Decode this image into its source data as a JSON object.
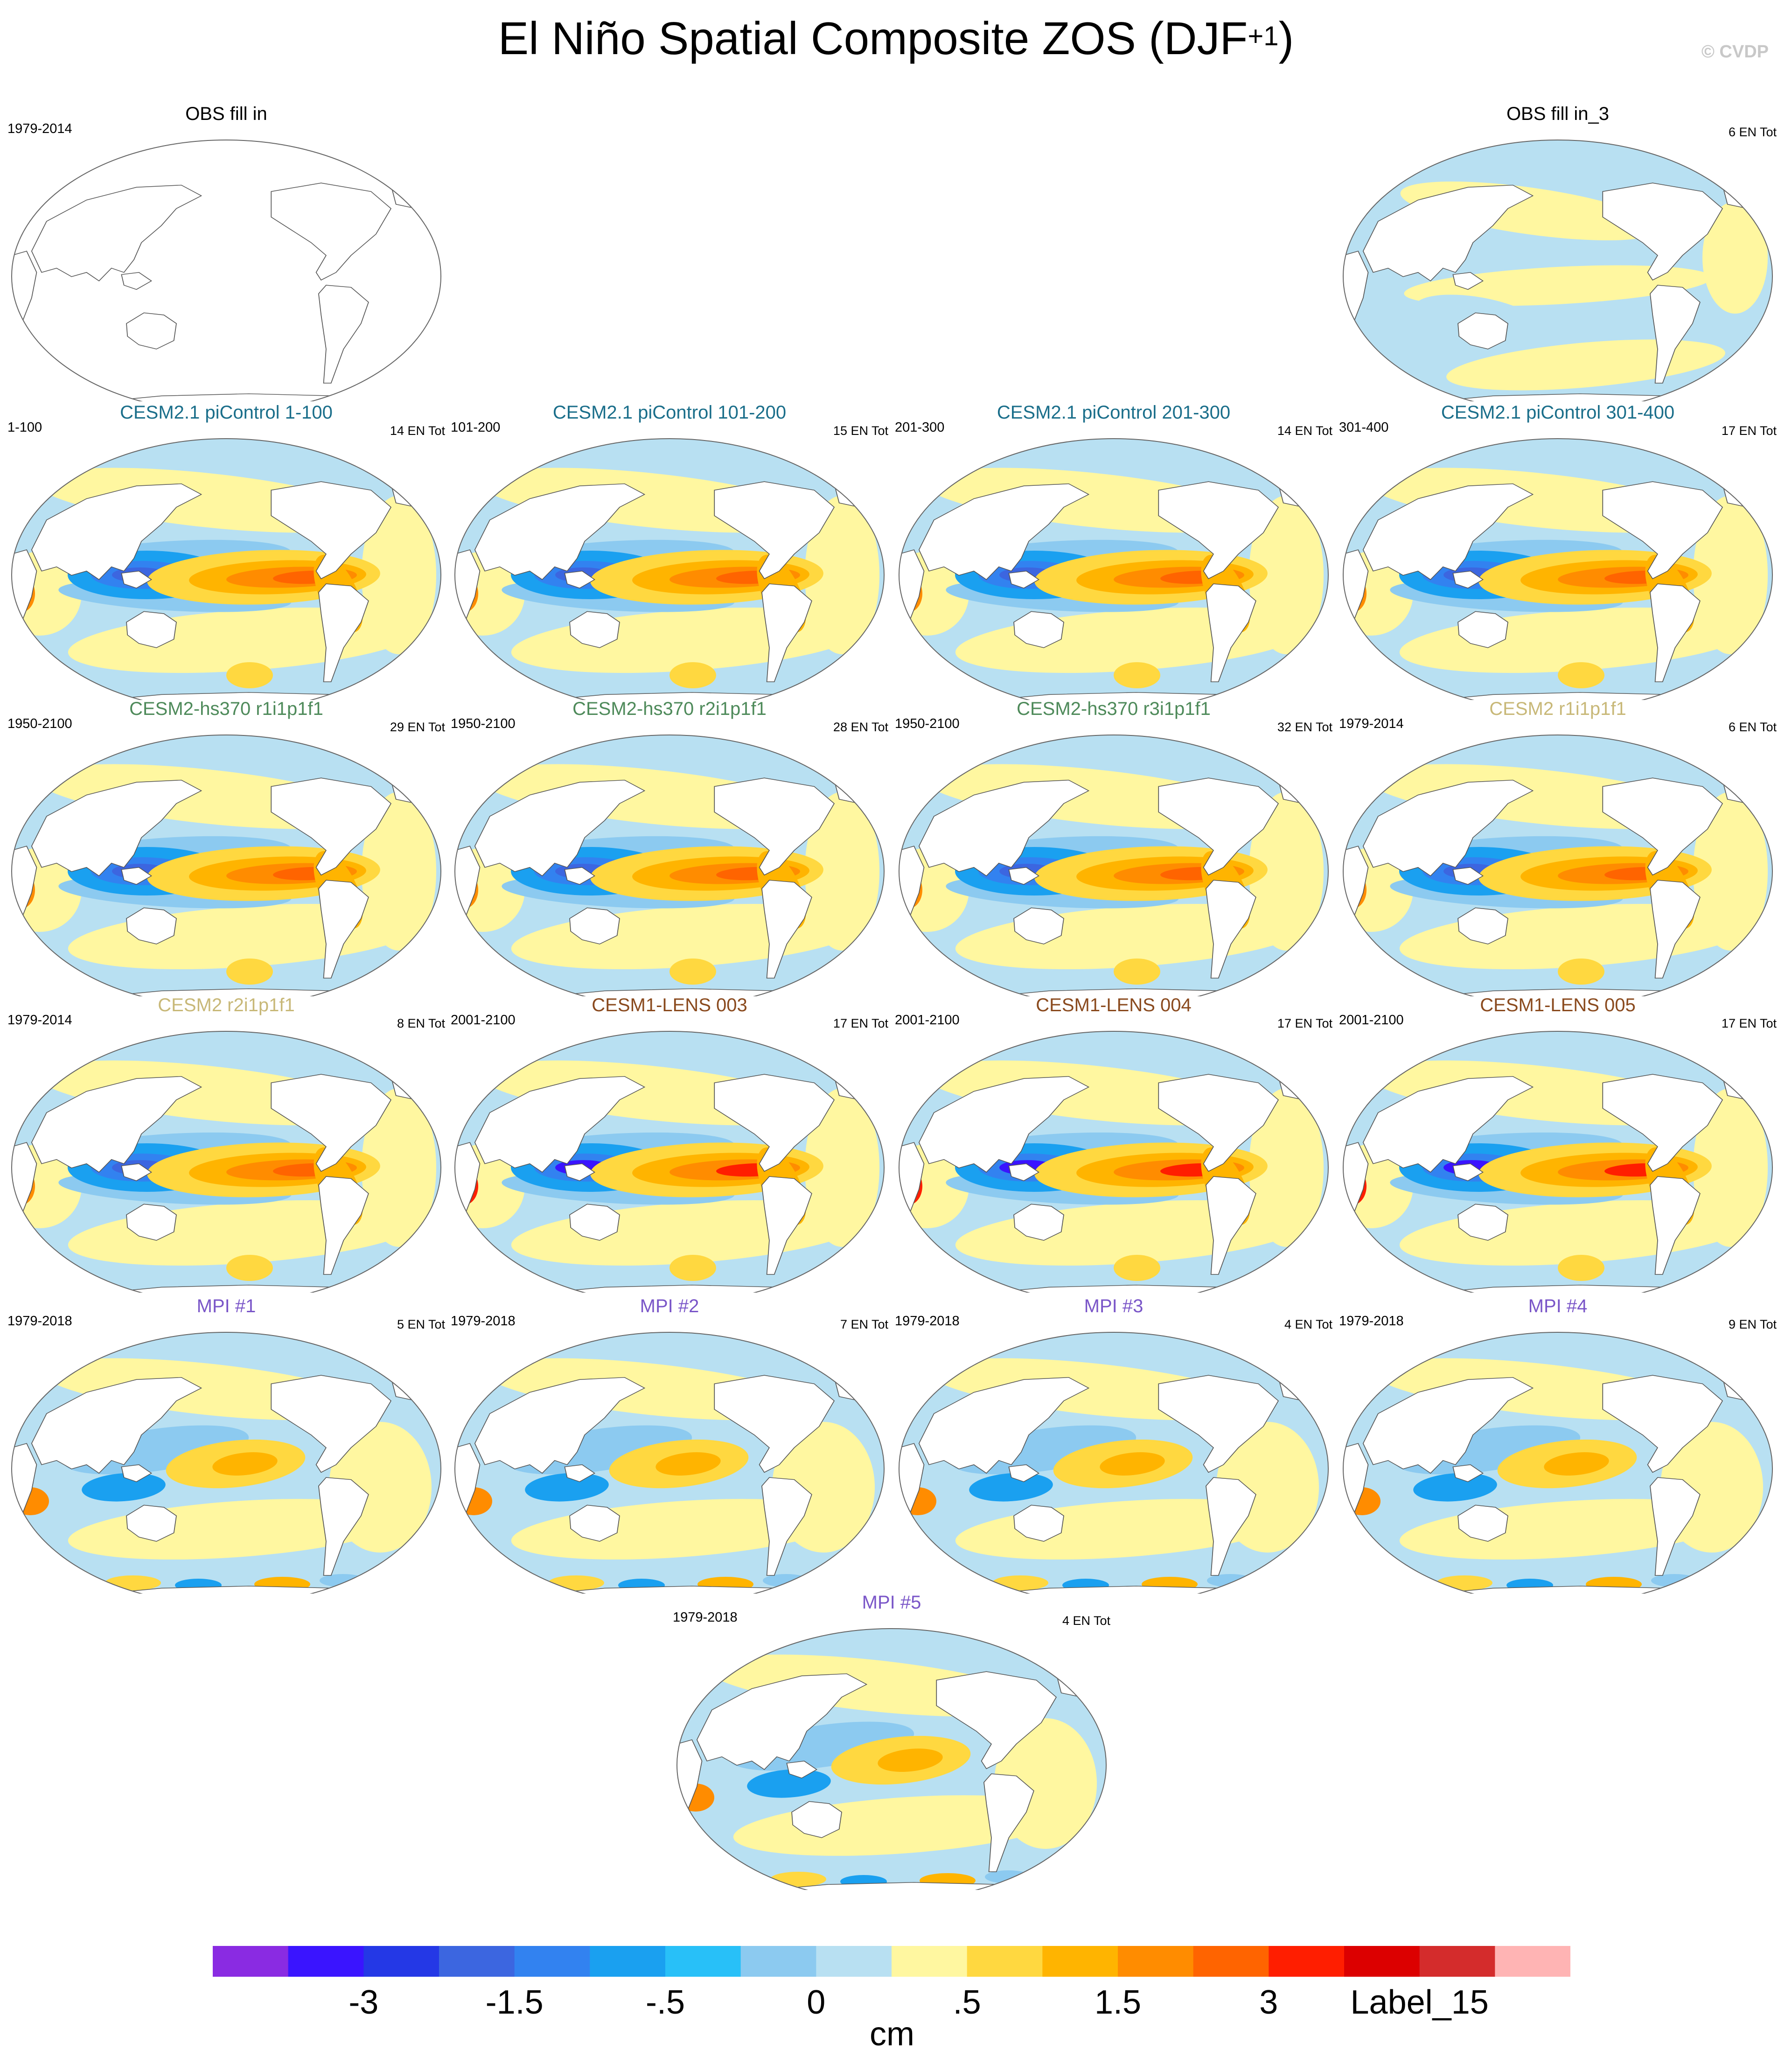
{
  "figure": {
    "title_main": "El Niño Spatial Composite ZOS (DJF",
    "title_sup": "+1",
    "title_close": ")",
    "copyright": "© CVDP",
    "colorbar": {
      "unit": "cm",
      "colors": [
        "#8a2be2",
        "#3a14ff",
        "#2438e6",
        "#3c66e0",
        "#3282f0",
        "#1aa0f0",
        "#28c0f8",
        "#8ccaf0",
        "#b8e0f2",
        "#fff7a0",
        "#ffd840",
        "#ffb400",
        "#ff8c00",
        "#ff6400",
        "#ff1e00",
        "#dc0000",
        "#d42c2c",
        "#ffb4b4"
      ],
      "tick_labels": [
        {
          "text": "-3",
          "boundary": 2
        },
        {
          "text": "-1.5",
          "boundary": 4
        },
        {
          "text": "-.5",
          "boundary": 6
        },
        {
          "text": "0",
          "boundary": 8
        },
        {
          "text": ".5",
          "boundary": 10
        },
        {
          "text": "1.5",
          "boundary": 12
        },
        {
          "text": "3",
          "boundary": 14
        },
        {
          "text": "Label_15",
          "boundary": 16
        }
      ]
    }
  },
  "chart_data": [
    {
      "type": "heatmap",
      "title": "OBS fill in",
      "title_color": "#000000",
      "period": "1979-2014",
      "count": "",
      "pattern": "empty"
    },
    {
      "type": "heatmap",
      "title": "OBS fill in_3",
      "title_color": "#000000",
      "period": "",
      "count": "6 EN Tot",
      "pattern": "weak"
    },
    {
      "type": "heatmap",
      "title": "CESM2.1 piControl 1-100",
      "title_color": "#1a6e8a",
      "period": "1-100",
      "count": "14 EN Tot",
      "pattern": "enso"
    },
    {
      "type": "heatmap",
      "title": "CESM2.1 piControl 101-200",
      "title_color": "#1a6e8a",
      "period": "101-200",
      "count": "15 EN Tot",
      "pattern": "enso"
    },
    {
      "type": "heatmap",
      "title": "CESM2.1 piControl 201-300",
      "title_color": "#1a6e8a",
      "period": "201-300",
      "count": "14 EN Tot",
      "pattern": "enso"
    },
    {
      "type": "heatmap",
      "title": "CESM2.1 piControl 301-400",
      "title_color": "#1a6e8a",
      "period": "301-400",
      "count": "17 EN Tot",
      "pattern": "enso"
    },
    {
      "type": "heatmap",
      "title": "CESM2-hs370 r1i1p1f1",
      "title_color": "#4e8a5a",
      "period": "1950-2100",
      "count": "29 EN Tot",
      "pattern": "enso"
    },
    {
      "type": "heatmap",
      "title": "CESM2-hs370 r2i1p1f1",
      "title_color": "#4e8a5a",
      "period": "1950-2100",
      "count": "28 EN Tot",
      "pattern": "enso"
    },
    {
      "type": "heatmap",
      "title": "CESM2-hs370 r3i1p1f1",
      "title_color": "#4e8a5a",
      "period": "1950-2100",
      "count": "32 EN Tot",
      "pattern": "enso"
    },
    {
      "type": "heatmap",
      "title": "CESM2 r1i1p1f1",
      "title_color": "#c8b878",
      "period": "1979-2014",
      "count": "6 EN Tot",
      "pattern": "enso"
    },
    {
      "type": "heatmap",
      "title": "CESM2 r2i1p1f1",
      "title_color": "#c8b878",
      "period": "1979-2014",
      "count": "8 EN Tot",
      "pattern": "enso"
    },
    {
      "type": "heatmap",
      "title": "CESM1-LENS 003",
      "title_color": "#8a4a1e",
      "period": "2001-2100",
      "count": "17 EN Tot",
      "pattern": "strong"
    },
    {
      "type": "heatmap",
      "title": "CESM1-LENS 004",
      "title_color": "#8a4a1e",
      "period": "2001-2100",
      "count": "17 EN Tot",
      "pattern": "strong"
    },
    {
      "type": "heatmap",
      "title": "CESM1-LENS 005",
      "title_color": "#8a4a1e",
      "period": "2001-2100",
      "count": "17 EN Tot",
      "pattern": "strong"
    },
    {
      "type": "heatmap",
      "title": "MPI #1",
      "title_color": "#7a56c8",
      "period": "1979-2018",
      "count": "5 EN Tot",
      "pattern": "mpi"
    },
    {
      "type": "heatmap",
      "title": "MPI #2",
      "title_color": "#7a56c8",
      "period": "1979-2018",
      "count": "7 EN Tot",
      "pattern": "mpi"
    },
    {
      "type": "heatmap",
      "title": "MPI #3",
      "title_color": "#7a56c8",
      "period": "1979-2018",
      "count": "4 EN Tot",
      "pattern": "mpi"
    },
    {
      "type": "heatmap",
      "title": "MPI #4",
      "title_color": "#7a56c8",
      "period": "1979-2018",
      "count": "9 EN Tot",
      "pattern": "mpi"
    },
    {
      "type": "heatmap",
      "title": "MPI #5",
      "title_color": "#7a56c8",
      "period": "1979-2018",
      "count": "4 EN Tot",
      "pattern": "mpi"
    }
  ]
}
